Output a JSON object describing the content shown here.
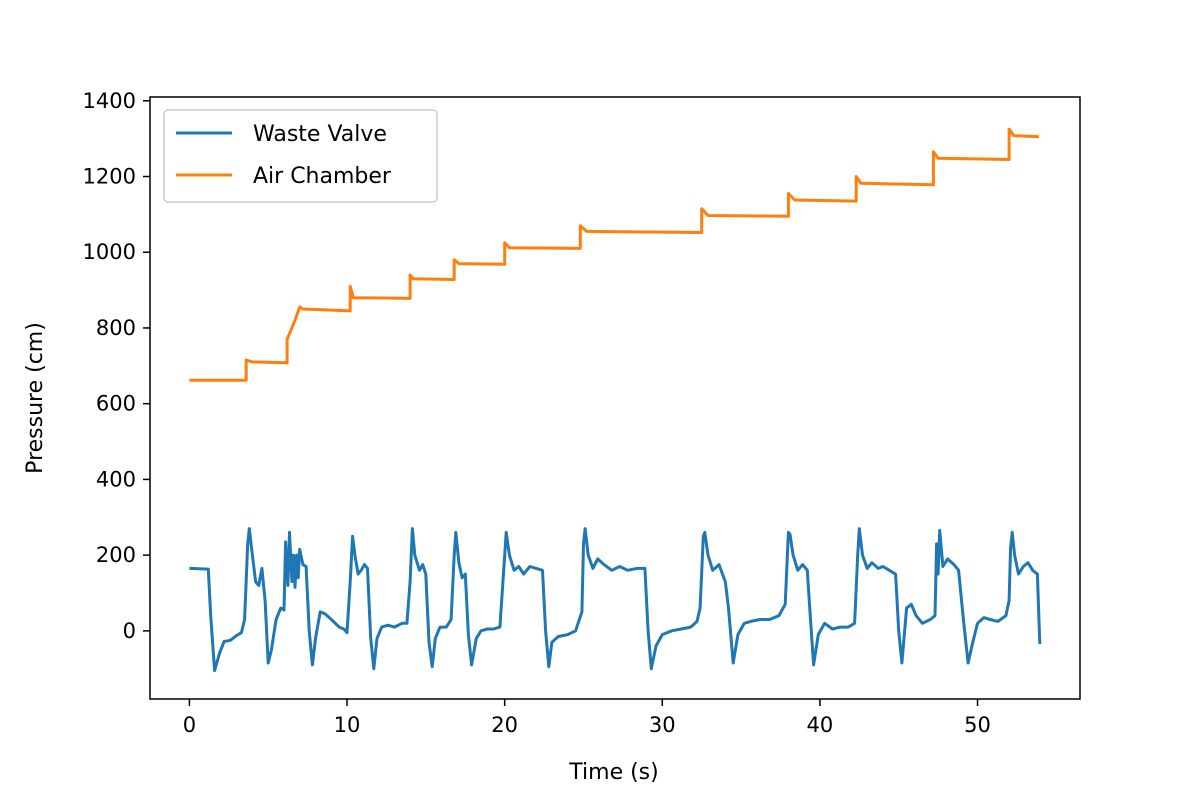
{
  "chart_data": {
    "type": "line",
    "title": "",
    "xlabel": "Time (s)",
    "ylabel": "Pressure (cm)",
    "xlim": [
      -2.5,
      56.5
    ],
    "ylim": [
      -180,
      1410
    ],
    "x_ticks": [
      0,
      10,
      20,
      30,
      40,
      50
    ],
    "y_ticks": [
      0,
      200,
      400,
      600,
      800,
      1000,
      1200,
      1400
    ],
    "grid": false,
    "legend_position": "upper-left",
    "series": [
      {
        "name": "Waste Valve",
        "color": "#1f77b4",
        "points": [
          [
            0.0,
            165
          ],
          [
            1.2,
            163
          ],
          [
            1.35,
            40
          ],
          [
            1.6,
            -105
          ],
          [
            1.9,
            -60
          ],
          [
            2.2,
            -28
          ],
          [
            2.6,
            -25
          ],
          [
            3.0,
            -12
          ],
          [
            3.3,
            -5
          ],
          [
            3.5,
            30
          ],
          [
            3.7,
            230
          ],
          [
            3.8,
            270
          ],
          [
            3.95,
            215
          ],
          [
            4.2,
            130
          ],
          [
            4.4,
            120
          ],
          [
            4.6,
            165
          ],
          [
            4.8,
            80
          ],
          [
            5.0,
            -85
          ],
          [
            5.2,
            -50
          ],
          [
            5.5,
            30
          ],
          [
            5.8,
            60
          ],
          [
            6.0,
            55
          ],
          [
            6.1,
            235
          ],
          [
            6.25,
            120
          ],
          [
            6.35,
            260
          ],
          [
            6.5,
            130
          ],
          [
            6.6,
            200
          ],
          [
            6.7,
            115
          ],
          [
            6.8,
            200
          ],
          [
            6.9,
            140
          ],
          [
            7.0,
            215
          ],
          [
            7.2,
            175
          ],
          [
            7.4,
            170
          ],
          [
            7.6,
            0
          ],
          [
            7.8,
            -90
          ],
          [
            8.0,
            -20
          ],
          [
            8.3,
            50
          ],
          [
            8.6,
            45
          ],
          [
            9.0,
            30
          ],
          [
            9.5,
            10
          ],
          [
            9.8,
            5
          ],
          [
            10.0,
            -5
          ],
          [
            10.2,
            130
          ],
          [
            10.35,
            250
          ],
          [
            10.5,
            200
          ],
          [
            10.7,
            150
          ],
          [
            10.9,
            160
          ],
          [
            11.1,
            175
          ],
          [
            11.3,
            165
          ],
          [
            11.5,
            -20
          ],
          [
            11.7,
            -100
          ],
          [
            11.9,
            -20
          ],
          [
            12.2,
            10
          ],
          [
            12.6,
            15
          ],
          [
            13.0,
            10
          ],
          [
            13.5,
            20
          ],
          [
            13.8,
            20
          ],
          [
            14.0,
            130
          ],
          [
            14.15,
            270
          ],
          [
            14.3,
            200
          ],
          [
            14.6,
            160
          ],
          [
            14.8,
            175
          ],
          [
            15.0,
            150
          ],
          [
            15.2,
            -30
          ],
          [
            15.4,
            -95
          ],
          [
            15.6,
            -20
          ],
          [
            15.9,
            10
          ],
          [
            16.3,
            10
          ],
          [
            16.6,
            30
          ],
          [
            16.8,
            200
          ],
          [
            16.9,
            260
          ],
          [
            17.1,
            180
          ],
          [
            17.3,
            140
          ],
          [
            17.5,
            150
          ],
          [
            17.7,
            -10
          ],
          [
            17.9,
            -90
          ],
          [
            18.2,
            -20
          ],
          [
            18.5,
            0
          ],
          [
            18.9,
            5
          ],
          [
            19.3,
            5
          ],
          [
            19.7,
            10
          ],
          [
            20.0,
            200
          ],
          [
            20.1,
            260
          ],
          [
            20.3,
            200
          ],
          [
            20.6,
            160
          ],
          [
            20.9,
            170
          ],
          [
            21.2,
            150
          ],
          [
            21.6,
            170
          ],
          [
            22.0,
            165
          ],
          [
            22.4,
            160
          ],
          [
            22.6,
            0
          ],
          [
            22.8,
            -95
          ],
          [
            23.0,
            -30
          ],
          [
            23.4,
            -15
          ],
          [
            24.0,
            -10
          ],
          [
            24.5,
            0
          ],
          [
            24.9,
            50
          ],
          [
            25.0,
            230
          ],
          [
            25.1,
            270
          ],
          [
            25.3,
            200
          ],
          [
            25.6,
            165
          ],
          [
            25.9,
            190
          ],
          [
            26.3,
            175
          ],
          [
            26.8,
            160
          ],
          [
            27.3,
            170
          ],
          [
            27.8,
            160
          ],
          [
            28.4,
            165
          ],
          [
            28.9,
            165
          ],
          [
            29.1,
            0
          ],
          [
            29.3,
            -100
          ],
          [
            29.6,
            -40
          ],
          [
            30.0,
            -10
          ],
          [
            30.6,
            0
          ],
          [
            31.2,
            5
          ],
          [
            31.8,
            10
          ],
          [
            32.2,
            25
          ],
          [
            32.4,
            60
          ],
          [
            32.6,
            250
          ],
          [
            32.7,
            260
          ],
          [
            32.9,
            200
          ],
          [
            33.2,
            160
          ],
          [
            33.6,
            175
          ],
          [
            34.0,
            130
          ],
          [
            34.2,
            60
          ],
          [
            34.5,
            -85
          ],
          [
            34.8,
            -10
          ],
          [
            35.2,
            20
          ],
          [
            35.6,
            25
          ],
          [
            36.2,
            30
          ],
          [
            36.8,
            30
          ],
          [
            37.4,
            40
          ],
          [
            37.8,
            70
          ],
          [
            38.0,
            260
          ],
          [
            38.1,
            255
          ],
          [
            38.3,
            200
          ],
          [
            38.6,
            160
          ],
          [
            38.9,
            175
          ],
          [
            39.2,
            160
          ],
          [
            39.4,
            30
          ],
          [
            39.6,
            -90
          ],
          [
            39.9,
            -10
          ],
          [
            40.3,
            20
          ],
          [
            40.8,
            5
          ],
          [
            41.3,
            10
          ],
          [
            41.8,
            10
          ],
          [
            42.2,
            20
          ],
          [
            42.4,
            200
          ],
          [
            42.5,
            270
          ],
          [
            42.7,
            200
          ],
          [
            43.0,
            165
          ],
          [
            43.3,
            180
          ],
          [
            43.7,
            165
          ],
          [
            44.0,
            170
          ],
          [
            44.4,
            160
          ],
          [
            44.8,
            150
          ],
          [
            45.0,
            0
          ],
          [
            45.2,
            -85
          ],
          [
            45.5,
            60
          ],
          [
            45.8,
            70
          ],
          [
            46.1,
            40
          ],
          [
            46.5,
            20
          ],
          [
            47.0,
            30
          ],
          [
            47.3,
            40
          ],
          [
            47.4,
            230
          ],
          [
            47.5,
            150
          ],
          [
            47.6,
            265
          ],
          [
            47.8,
            170
          ],
          [
            48.1,
            190
          ],
          [
            48.5,
            175
          ],
          [
            48.8,
            160
          ],
          [
            49.1,
            30
          ],
          [
            49.4,
            -85
          ],
          [
            49.7,
            -30
          ],
          [
            50.0,
            20
          ],
          [
            50.4,
            35
          ],
          [
            50.8,
            30
          ],
          [
            51.3,
            25
          ],
          [
            51.8,
            40
          ],
          [
            52.0,
            80
          ],
          [
            52.1,
            220
          ],
          [
            52.2,
            260
          ],
          [
            52.35,
            200
          ],
          [
            52.6,
            150
          ],
          [
            52.9,
            170
          ],
          [
            53.2,
            180
          ],
          [
            53.5,
            160
          ],
          [
            53.8,
            150
          ],
          [
            53.95,
            -35
          ]
        ]
      },
      {
        "name": "Air Chamber",
        "color": "#ff7f0e",
        "points": [
          [
            0.0,
            662
          ],
          [
            3.6,
            662
          ],
          [
            3.6,
            715
          ],
          [
            4.0,
            710
          ],
          [
            6.2,
            708
          ],
          [
            6.2,
            770
          ],
          [
            6.7,
            820
          ],
          [
            7.0,
            855
          ],
          [
            7.2,
            850
          ],
          [
            10.2,
            845
          ],
          [
            10.2,
            910
          ],
          [
            10.4,
            880
          ],
          [
            14.0,
            878
          ],
          [
            14.0,
            940
          ],
          [
            14.2,
            930
          ],
          [
            16.8,
            928
          ],
          [
            16.8,
            980
          ],
          [
            17.1,
            970
          ],
          [
            20.0,
            968
          ],
          [
            20.0,
            1025
          ],
          [
            20.3,
            1012
          ],
          [
            24.8,
            1010
          ],
          [
            24.8,
            1070
          ],
          [
            25.2,
            1055
          ],
          [
            32.5,
            1052
          ],
          [
            32.5,
            1115
          ],
          [
            32.9,
            1097
          ],
          [
            38.0,
            1095
          ],
          [
            38.0,
            1155
          ],
          [
            38.4,
            1138
          ],
          [
            42.3,
            1135
          ],
          [
            42.3,
            1200
          ],
          [
            42.6,
            1182
          ],
          [
            47.2,
            1178
          ],
          [
            47.2,
            1265
          ],
          [
            47.5,
            1248
          ],
          [
            52.0,
            1245
          ],
          [
            52.0,
            1325
          ],
          [
            52.3,
            1308
          ],
          [
            53.9,
            1305
          ]
        ]
      }
    ]
  }
}
